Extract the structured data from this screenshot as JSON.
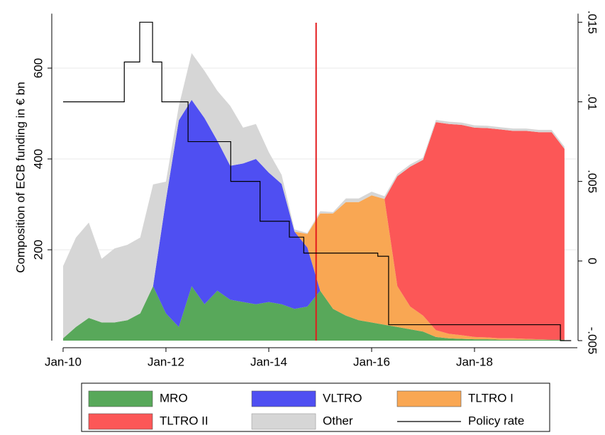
{
  "chart_data": {
    "type": "stacked_area",
    "y_label": "Composition of ECB funding in € bn",
    "x": [
      2010,
      2010.25,
      2010.5,
      2010.75,
      2011,
      2011.25,
      2011.5,
      2011.75,
      2012,
      2012.25,
      2012.5,
      2012.75,
      2013,
      2013.25,
      2013.5,
      2013.75,
      2014,
      2014.25,
      2014.5,
      2014.75,
      2015,
      2015.25,
      2015.5,
      2015.75,
      2016,
      2016.25,
      2016.5,
      2016.75,
      2017,
      2017.25,
      2017.5,
      2017.75,
      2018,
      2018.25,
      2018.5,
      2018.75,
      2019,
      2019.25,
      2019.5,
      2019.75
    ],
    "series": [
      {
        "name": "MRO",
        "color": "#58a85a",
        "values": [
          5,
          30,
          50,
          40,
          40,
          45,
          60,
          120,
          60,
          30,
          120,
          80,
          110,
          90,
          85,
          80,
          85,
          80,
          70,
          75,
          110,
          70,
          55,
          45,
          40,
          35,
          30,
          25,
          20,
          8,
          5,
          4,
          3,
          3,
          2,
          2,
          2,
          2,
          2,
          2
        ]
      },
      {
        "name": "VLTRO",
        "color": "#4f4ff2",
        "values": [
          0,
          0,
          0,
          0,
          0,
          0,
          0,
          0,
          250,
          455,
          410,
          410,
          330,
          295,
          305,
          320,
          285,
          265,
          170,
          130,
          0,
          0,
          0,
          0,
          0,
          0,
          0,
          0,
          0,
          0,
          0,
          0,
          0,
          0,
          0,
          0,
          0,
          0,
          0,
          0
        ]
      },
      {
        "name": "TLTRO I",
        "color": "#f9a753",
        "values": [
          0,
          0,
          0,
          0,
          0,
          0,
          0,
          0,
          0,
          0,
          0,
          0,
          0,
          0,
          0,
          0,
          0,
          0,
          0,
          30,
          170,
          210,
          250,
          260,
          280,
          277,
          90,
          50,
          35,
          15,
          10,
          8,
          5,
          4,
          3,
          3,
          2,
          1,
          0,
          0
        ]
      },
      {
        "name": "TLTRO II",
        "color": "#fc5757",
        "values": [
          0,
          0,
          0,
          0,
          0,
          0,
          0,
          0,
          0,
          0,
          0,
          0,
          0,
          0,
          0,
          0,
          0,
          0,
          0,
          0,
          0,
          0,
          0,
          0,
          0,
          0,
          242,
          308,
          343,
          458,
          462,
          463,
          461,
          461,
          460,
          457,
          458,
          456,
          457,
          420
        ]
      },
      {
        "name": "Other",
        "color": "#d6d6d6",
        "values": [
          159,
          197,
          210,
          140,
          163,
          166,
          167,
          224,
          40,
          31,
          103,
          104,
          110,
          132,
          79,
          77,
          45,
          20,
          5,
          2,
          5,
          3,
          8,
          8,
          8,
          6,
          5,
          5,
          5,
          5,
          5,
          5,
          5,
          5,
          5,
          5,
          5,
          5,
          5,
          5
        ]
      }
    ],
    "policy": {
      "name": "Policy rate",
      "color": "#000000",
      "axis": "y2",
      "x": [
        2010,
        2011.19,
        2011.19,
        2011.49,
        2011.49,
        2011.74,
        2011.74,
        2011.92,
        2011.92,
        2012.43,
        2012.43,
        2013.26,
        2013.26,
        2013.83,
        2013.83,
        2014.4,
        2014.4,
        2014.68,
        2014.68,
        2016.12,
        2016.12,
        2016.33,
        2016.33,
        2019.67,
        2019.67,
        2019.88
      ],
      "values": [
        0.01,
        0.01,
        0.0125,
        0.0125,
        0.015,
        0.015,
        0.0125,
        0.0125,
        0.01,
        0.01,
        0.0075,
        0.0075,
        0.005,
        0.005,
        0.0025,
        0.0025,
        0.0015,
        0.0015,
        0.0005,
        0.0005,
        0.0003,
        0.0003,
        -0.004,
        -0.004,
        -0.005,
        -0.005
      ]
    },
    "vline": 2014.92,
    "vline_color": "#e31a1c",
    "xlim": [
      2009.78,
      2020.0
    ],
    "xticks": [
      {
        "value": 2010,
        "label": "Jan-10"
      },
      {
        "value": 2012,
        "label": "Jan-12"
      },
      {
        "value": 2014,
        "label": "Jan-14"
      },
      {
        "value": 2016,
        "label": "Jan-16"
      },
      {
        "value": 2018,
        "label": "Jan-18"
      }
    ],
    "ylim": [
      0,
      720
    ],
    "yticks": [
      200,
      400,
      600
    ],
    "y2lim": [
      -0.005,
      0.01554
    ],
    "y2ticks": [
      {
        "value": -0.005,
        "label": "-.005"
      },
      0,
      {
        "value": 0.005,
        "label": ".005"
      },
      {
        "value": 0.01,
        "label": ".01"
      },
      {
        "value": 0.015,
        "label": ".015"
      }
    ],
    "grid": true
  }
}
